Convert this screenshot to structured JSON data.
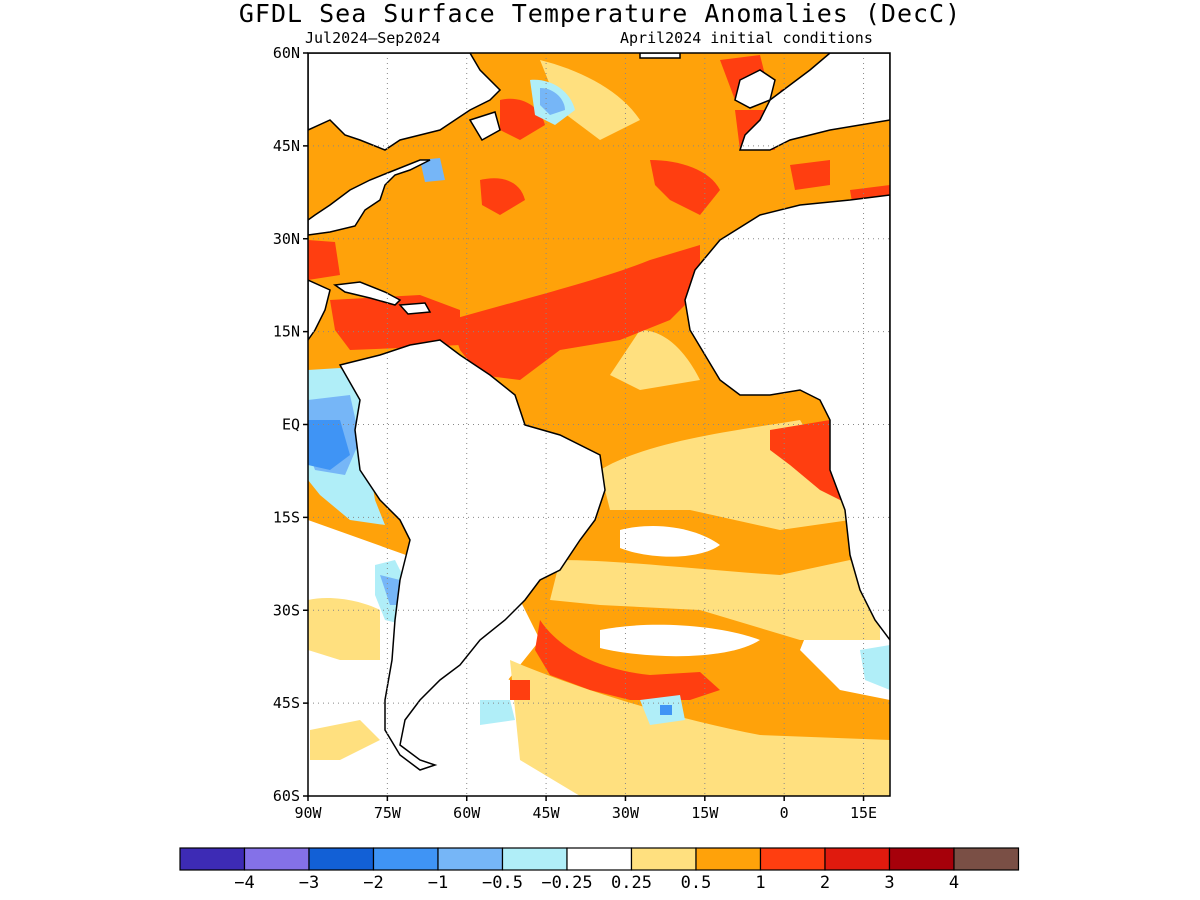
{
  "title": "GFDL Sea Surface Temperature Anomalies (DecC)",
  "subtitle_left": "Jul2024—Sep2024",
  "subtitle_right": "April2024 initial conditions",
  "map": {
    "lon_range": [
      -90,
      20
    ],
    "lat_range": [
      -60,
      60
    ],
    "lat_ticks": [
      {
        "value": 60,
        "label": "60N"
      },
      {
        "value": 45,
        "label": "45N"
      },
      {
        "value": 30,
        "label": "30N"
      },
      {
        "value": 15,
        "label": "15N"
      },
      {
        "value": 0,
        "label": "EQ"
      },
      {
        "value": -15,
        "label": "15S"
      },
      {
        "value": -30,
        "label": "30S"
      },
      {
        "value": -45,
        "label": "45S"
      },
      {
        "value": -60,
        "label": "60S"
      }
    ],
    "lon_ticks": [
      {
        "value": -90,
        "label": "90W"
      },
      {
        "value": -75,
        "label": "75W"
      },
      {
        "value": -60,
        "label": "60W"
      },
      {
        "value": -45,
        "label": "45W"
      },
      {
        "value": -30,
        "label": "30W"
      },
      {
        "value": -15,
        "label": "15W"
      },
      {
        "value": 0,
        "label": "0"
      },
      {
        "value": 15,
        "label": "15E"
      }
    ],
    "grid": true
  },
  "colorbar": {
    "colors": [
      "#3d2bb5",
      "#8471e8",
      "#1260d6",
      "#3f94f5",
      "#76b6f7",
      "#b0eef8",
      "#ffffff",
      "#ffe07f",
      "#ffa20a",
      "#ff3e10",
      "#e01a0e",
      "#a6000a",
      "#7a4f45"
    ],
    "labels": [
      "−4",
      "−3",
      "−2",
      "−1",
      "−0.5",
      "−0.25",
      "0.25",
      "0.5",
      "1",
      "2",
      "3",
      "4"
    ]
  },
  "palette": {
    "land": "#ffffff",
    "coast": "#000000",
    "ocean_base": "#ffa20a",
    "strong_warm": "#ff3e10",
    "weak_warm": "#ffe07f",
    "neutral": "#ffffff",
    "weak_cool": "#b0eef8",
    "cool": "#76b6f7",
    "strong_cool": "#3f94f5"
  }
}
